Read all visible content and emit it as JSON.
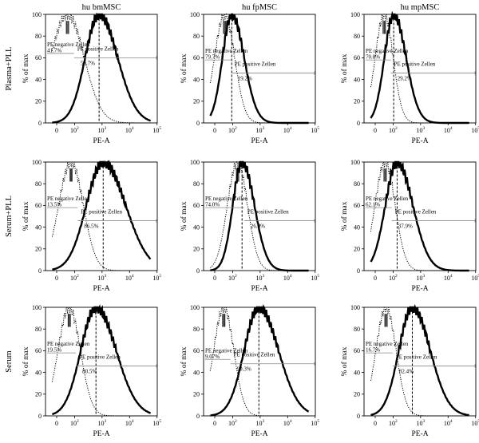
{
  "columns": [
    "hu bmMSC",
    "hu fpMSC",
    "hu mpMSC"
  ],
  "rows": [
    "Plasma+PLL",
    "Serum+PLL",
    "Serum"
  ],
  "axes": {
    "xlabel": "PE-A",
    "ylabel": "% of max",
    "y_ticks": [
      "0",
      "20",
      "40",
      "60",
      "80",
      "100"
    ],
    "x_ticks": [
      {
        "base": "0",
        "exp": ""
      },
      {
        "base": "10",
        "exp": "2"
      },
      {
        "base": "10",
        "exp": "3"
      },
      {
        "base": "10",
        "exp": "4"
      },
      {
        "base": "10",
        "exp": "5"
      }
    ]
  },
  "gate_labels": {
    "negative": "PE negative Zellen",
    "positive": "PE positive Zellen"
  },
  "chart_data": [
    {
      "type": "histogram",
      "row": "Plasma+PLL",
      "column": "hu bmMSC",
      "neg_pct": "41.7%",
      "pos_pct": "56.7%",
      "neg_peak": 60,
      "neg_width": 0.3,
      "pos_peak": 780,
      "pos_width": 0.33
    },
    {
      "type": "histogram",
      "row": "Plasma+PLL",
      "column": "hu fpMSC",
      "neg_pct": "79.7%",
      "pos_pct": "19.2%",
      "neg_peak": 55,
      "neg_width": 0.18,
      "pos_peak": 95,
      "pos_width": 0.22
    },
    {
      "type": "histogram",
      "row": "Plasma+PLL",
      "column": "hu mpMSC",
      "neg_pct": "70.8%",
      "pos_pct": "29.2%",
      "neg_peak": 50,
      "neg_width": 0.16,
      "pos_peak": 105,
      "pos_width": 0.22
    },
    {
      "type": "histogram",
      "row": "Serum+PLL",
      "column": "hu bmMSC",
      "neg_pct": "13.5%",
      "pos_pct": "86.5%",
      "neg_peak": 80,
      "neg_width": 0.22,
      "pos_peak": 1100,
      "pos_width": 0.4
    },
    {
      "type": "histogram",
      "row": "Serum+PLL",
      "column": "hu fpMSC",
      "neg_pct": "74.0%",
      "pos_pct": "26.0%",
      "neg_peak": 150,
      "neg_width": 0.18,
      "pos_peak": 220,
      "pos_width": 0.22
    },
    {
      "type": "histogram",
      "row": "Serum+PLL",
      "column": "hu mpMSC",
      "neg_pct": "62.1%",
      "pos_pct": "37.9%",
      "neg_peak": 55,
      "neg_width": 0.18,
      "pos_peak": 140,
      "pos_width": 0.28
    },
    {
      "type": "histogram",
      "row": "Serum",
      "column": "hu bmMSC",
      "neg_pct": "19.5%",
      "pos_pct": "80.5%",
      "neg_peak": 70,
      "neg_width": 0.2,
      "pos_peak": 600,
      "pos_width": 0.36
    },
    {
      "type": "histogram",
      "row": "Serum",
      "column": "hu fpMSC",
      "neg_pct": "9.07%",
      "pos_pct": "90.3%",
      "neg_peak": 50,
      "neg_width": 0.18,
      "pos_peak": 900,
      "pos_width": 0.35
    },
    {
      "type": "histogram",
      "row": "Serum",
      "column": "hu mpMSC",
      "neg_pct": "16.7%",
      "pos_pct": "82.4%",
      "neg_peak": 60,
      "neg_width": 0.18,
      "pos_peak": 500,
      "pos_width": 0.32
    }
  ]
}
